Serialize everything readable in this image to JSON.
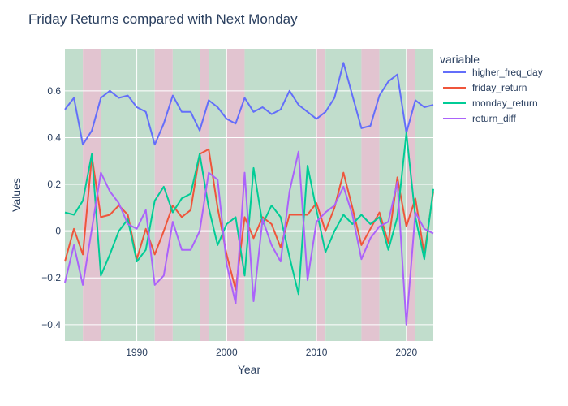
{
  "chart_data": {
    "type": "line",
    "title": "Friday Returns compared with Next Monday",
    "xlabel": "Year",
    "ylabel": "Values",
    "xlim": [
      1982,
      2023
    ],
    "ylim": [
      -0.47,
      0.78
    ],
    "x_ticks": [
      1990,
      2000,
      2010,
      2020
    ],
    "y_ticks": [
      -0.4,
      -0.2,
      0,
      0.2,
      0.4,
      0.6
    ],
    "y_tick_labels": [
      "−0.4",
      "−0.2",
      "0",
      "0.2",
      "0.4",
      "0.6"
    ],
    "legend_title": "variable",
    "legend_position": "right",
    "x": [
      1982,
      1983,
      1984,
      1985,
      1986,
      1987,
      1988,
      1989,
      1990,
      1991,
      1992,
      1993,
      1994,
      1995,
      1996,
      1997,
      1998,
      1999,
      2000,
      2001,
      2002,
      2003,
      2004,
      2005,
      2006,
      2007,
      2008,
      2009,
      2010,
      2011,
      2012,
      2013,
      2014,
      2015,
      2016,
      2017,
      2018,
      2019,
      2020,
      2021,
      2022,
      2023
    ],
    "series": [
      {
        "name": "higher_freq_day",
        "color": "#636efa",
        "values": [
          0.52,
          0.57,
          0.37,
          0.43,
          0.57,
          0.6,
          0.57,
          0.58,
          0.53,
          0.51,
          0.37,
          0.46,
          0.58,
          0.51,
          0.51,
          0.43,
          0.56,
          0.53,
          0.48,
          0.46,
          0.57,
          0.51,
          0.53,
          0.5,
          0.52,
          0.6,
          0.54,
          0.51,
          0.48,
          0.51,
          0.57,
          0.72,
          0.58,
          0.44,
          0.45,
          0.58,
          0.64,
          0.67,
          0.42,
          0.56,
          0.53,
          0.54
        ]
      },
      {
        "name": "friday_return",
        "color": "#ef553b",
        "values": [
          -0.13,
          0.01,
          -0.1,
          0.32,
          0.06,
          0.07,
          0.11,
          0.07,
          -0.12,
          0.01,
          -0.1,
          0.0,
          0.11,
          0.06,
          0.09,
          0.33,
          0.35,
          0.1,
          -0.1,
          -0.25,
          0.06,
          -0.03,
          0.06,
          0.03,
          -0.07,
          0.07,
          0.07,
          0.07,
          0.12,
          0.0,
          0.1,
          0.25,
          0.1,
          -0.06,
          0.01,
          0.08,
          -0.05,
          0.23,
          0.02,
          0.14,
          -0.1,
          0.17
        ]
      },
      {
        "name": "monday_return",
        "color": "#00cc96",
        "values": [
          0.08,
          0.07,
          0.13,
          0.33,
          -0.19,
          -0.1,
          0.0,
          0.05,
          -0.13,
          -0.08,
          0.13,
          0.19,
          0.08,
          0.14,
          0.16,
          0.33,
          0.1,
          -0.06,
          0.03,
          0.06,
          -0.19,
          0.27,
          0.03,
          0.11,
          0.06,
          -0.11,
          -0.27,
          0.28,
          0.09,
          -0.09,
          0.0,
          0.07,
          0.03,
          0.07,
          0.03,
          0.06,
          -0.08,
          0.06,
          0.42,
          0.06,
          -0.12,
          0.18
        ]
      },
      {
        "name": "return_diff",
        "color": "#ab63fa",
        "values": [
          -0.22,
          -0.06,
          -0.23,
          0.01,
          0.25,
          0.17,
          0.12,
          0.03,
          0.01,
          0.09,
          -0.23,
          -0.19,
          0.04,
          -0.08,
          -0.08,
          0.0,
          0.25,
          0.22,
          -0.14,
          -0.31,
          0.25,
          -0.3,
          0.05,
          -0.06,
          -0.13,
          0.17,
          0.34,
          -0.21,
          0.04,
          0.08,
          0.11,
          0.19,
          0.07,
          -0.12,
          -0.03,
          0.02,
          0.04,
          0.21,
          -0.4,
          0.08,
          0.01,
          -0.01
        ]
      }
    ],
    "background_bands": [
      {
        "x0": 1982,
        "x1": 1984,
        "color": "#c1ddcc"
      },
      {
        "x0": 1984,
        "x1": 1986,
        "color": "#e2c4d0"
      },
      {
        "x0": 1986,
        "x1": 1992,
        "color": "#c1ddcc"
      },
      {
        "x0": 1992,
        "x1": 1994,
        "color": "#e2c4d0"
      },
      {
        "x0": 1994,
        "x1": 1997,
        "color": "#c1ddcc"
      },
      {
        "x0": 1997,
        "x1": 1998,
        "color": "#e2c4d0"
      },
      {
        "x0": 1998,
        "x1": 2000,
        "color": "#c1ddcc"
      },
      {
        "x0": 2000,
        "x1": 2002,
        "color": "#e2c4d0"
      },
      {
        "x0": 2002,
        "x1": 2010,
        "color": "#c1ddcc"
      },
      {
        "x0": 2010,
        "x1": 2011,
        "color": "#e2c4d0"
      },
      {
        "x0": 2011,
        "x1": 2015,
        "color": "#c1ddcc"
      },
      {
        "x0": 2015,
        "x1": 2017,
        "color": "#e2c4d0"
      },
      {
        "x0": 2017,
        "x1": 2020,
        "color": "#c1ddcc"
      },
      {
        "x0": 2020,
        "x1": 2021,
        "color": "#e2c4d0"
      },
      {
        "x0": 2021,
        "x1": 2023,
        "color": "#c1ddcc"
      }
    ],
    "grid": true
  }
}
